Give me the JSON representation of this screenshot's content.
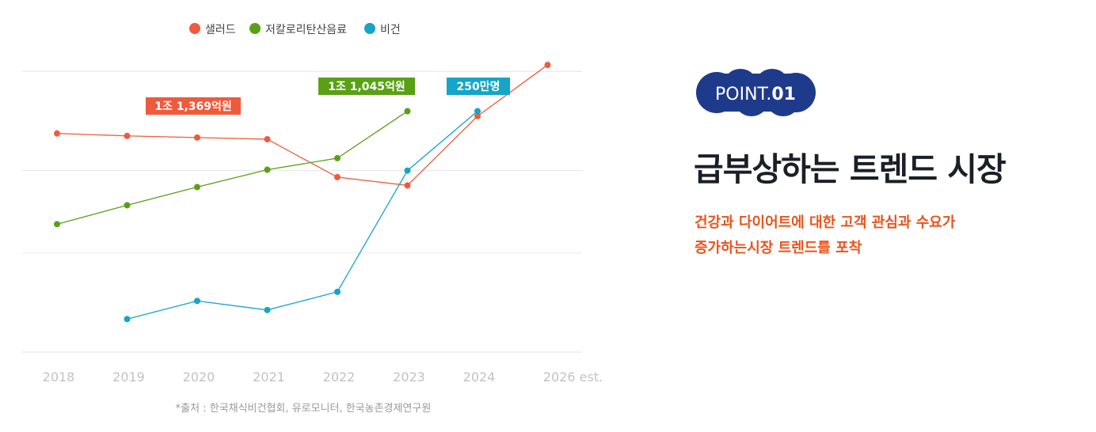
{
  "chart_data": {
    "type": "line",
    "categories": [
      "2018",
      "2019",
      "2020",
      "2021",
      "2022",
      "2023",
      "2024",
      "2026 est."
    ],
    "series": [
      {
        "name": "샐러드",
        "color": "#f05a3c",
        "values": [
          1.45,
          1.42,
          1.4,
          1.38,
          0.92,
          0.82,
          1.66,
          2.28
        ]
      },
      {
        "name": "저칼로리탄산음료",
        "color": "#5aa016",
        "values": [
          0.35,
          0.58,
          0.8,
          1.01,
          1.15,
          1.72,
          null,
          null
        ]
      },
      {
        "name": "비건",
        "color": "#14a5c8",
        "values": [
          null,
          -0.8,
          -0.58,
          -0.69,
          -0.47,
          1.0,
          1.72,
          null
        ]
      }
    ],
    "callouts": [
      {
        "text": "1조 1,369억원",
        "series": 0,
        "color": "#f05a3c"
      },
      {
        "text": "1조 1,045억원",
        "series": 1,
        "color": "#5aa016"
      },
      {
        "text": "250만명",
        "series": 2,
        "color": "#14a5c8"
      }
    ],
    "ylim": [
      -1.2,
      2.3
    ],
    "gridlines": [
      -1.2,
      0,
      1.0,
      2.2
    ],
    "grid": true,
    "legend_position": "top-center",
    "source": "*출처 : 한국채식비건협회, 유로모니터, 한국농촌경제연구원"
  },
  "badge": {
    "text": "POINT.",
    "number": "01",
    "color": "#1e3a8a"
  },
  "headline": "급부상하는 트렌드 시장",
  "subtext": {
    "line1": "건강과 다이어트에 대한 고객 관심과 수요가",
    "line2": "증가하는시장 트렌드를 포착"
  }
}
